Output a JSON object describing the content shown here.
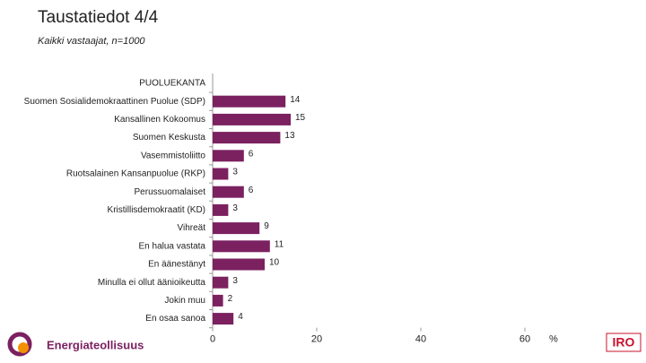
{
  "chart_data": {
    "type": "bar",
    "orientation": "horizontal",
    "title": "Taustatiedot 4/4",
    "subtitle": "Kaikki vastaajat, n=1000",
    "categories": [
      "PUOLUEKANTA",
      "Suomen Sosialidemokraattinen Puolue (SDP)",
      "Kansallinen Kokoomus",
      "Suomen Keskusta",
      "Vasemmistoliitto",
      "Ruotsalainen Kansanpuolue (RKP)",
      "Perussuomalaiset",
      "Kristillisdemokraatit (KD)",
      "Vihreät",
      "En halua vastata",
      "En äänestänyt",
      "Minulla ei ollut äänioikeutta",
      "Jokin muu",
      "En osaa sanoa"
    ],
    "values": [
      null,
      14,
      15,
      13,
      6,
      3,
      6,
      3,
      9,
      11,
      10,
      3,
      2,
      4
    ],
    "color": "#7b2160",
    "xlim": [
      0,
      60
    ],
    "xticks": [
      0,
      20,
      40,
      60
    ],
    "unit_label": "%",
    "logos": [
      "Energiateollisuus",
      "IRO"
    ]
  }
}
